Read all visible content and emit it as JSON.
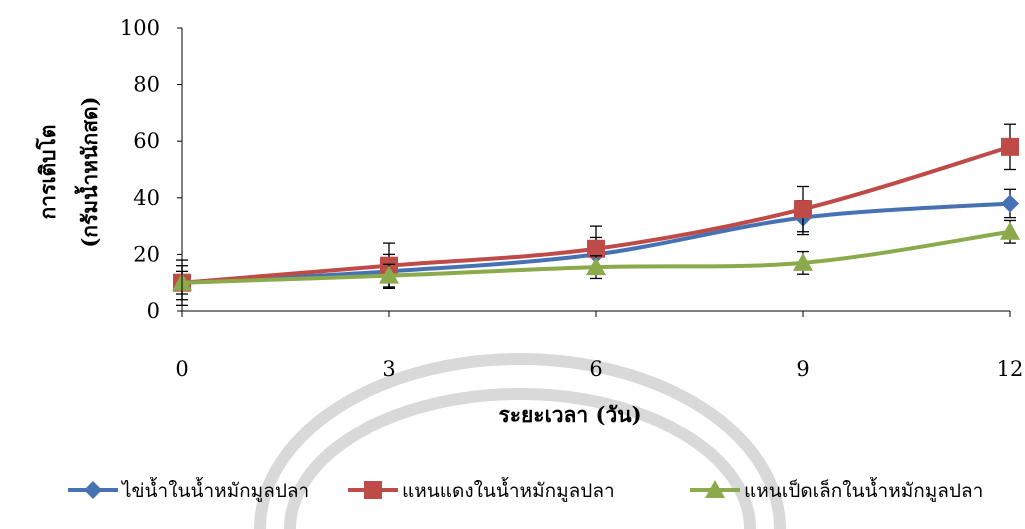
{
  "chart_data": {
    "type": "line",
    "x": [
      0,
      3,
      6,
      9,
      12
    ],
    "xlabel": "ระยะเวลา (วัน)",
    "ylabel": [
      "การเติบโต",
      "(กรัมน้ำหนักสด)"
    ],
    "xlim": [
      0,
      12
    ],
    "ylim": [
      0,
      100
    ],
    "yticks": [
      0,
      20,
      40,
      60,
      80,
      100
    ],
    "grid": false,
    "legend_position": "bottom",
    "series": [
      {
        "name": "ไข่น้ำในน้ำหมักมูลปลา",
        "color": "#4672B4",
        "marker": "diamond",
        "values": [
          10,
          14,
          20,
          33,
          38
        ],
        "errors": [
          6,
          6,
          6,
          6,
          5
        ]
      },
      {
        "name": "แหนแดงในน้ำหมักมูลปลา",
        "color": "#BE4B48",
        "marker": "square",
        "values": [
          10,
          16,
          22,
          36,
          58
        ],
        "errors": [
          8,
          8,
          8,
          8,
          8
        ]
      },
      {
        "name": "แหนเป็ดเล็กในน้ำหมักมูลปลา",
        "color": "#8BAA4B",
        "marker": "triangle",
        "values": [
          10,
          12.5,
          15.5,
          17,
          28
        ],
        "errors": [
          4,
          4,
          4,
          4,
          4
        ]
      }
    ]
  }
}
